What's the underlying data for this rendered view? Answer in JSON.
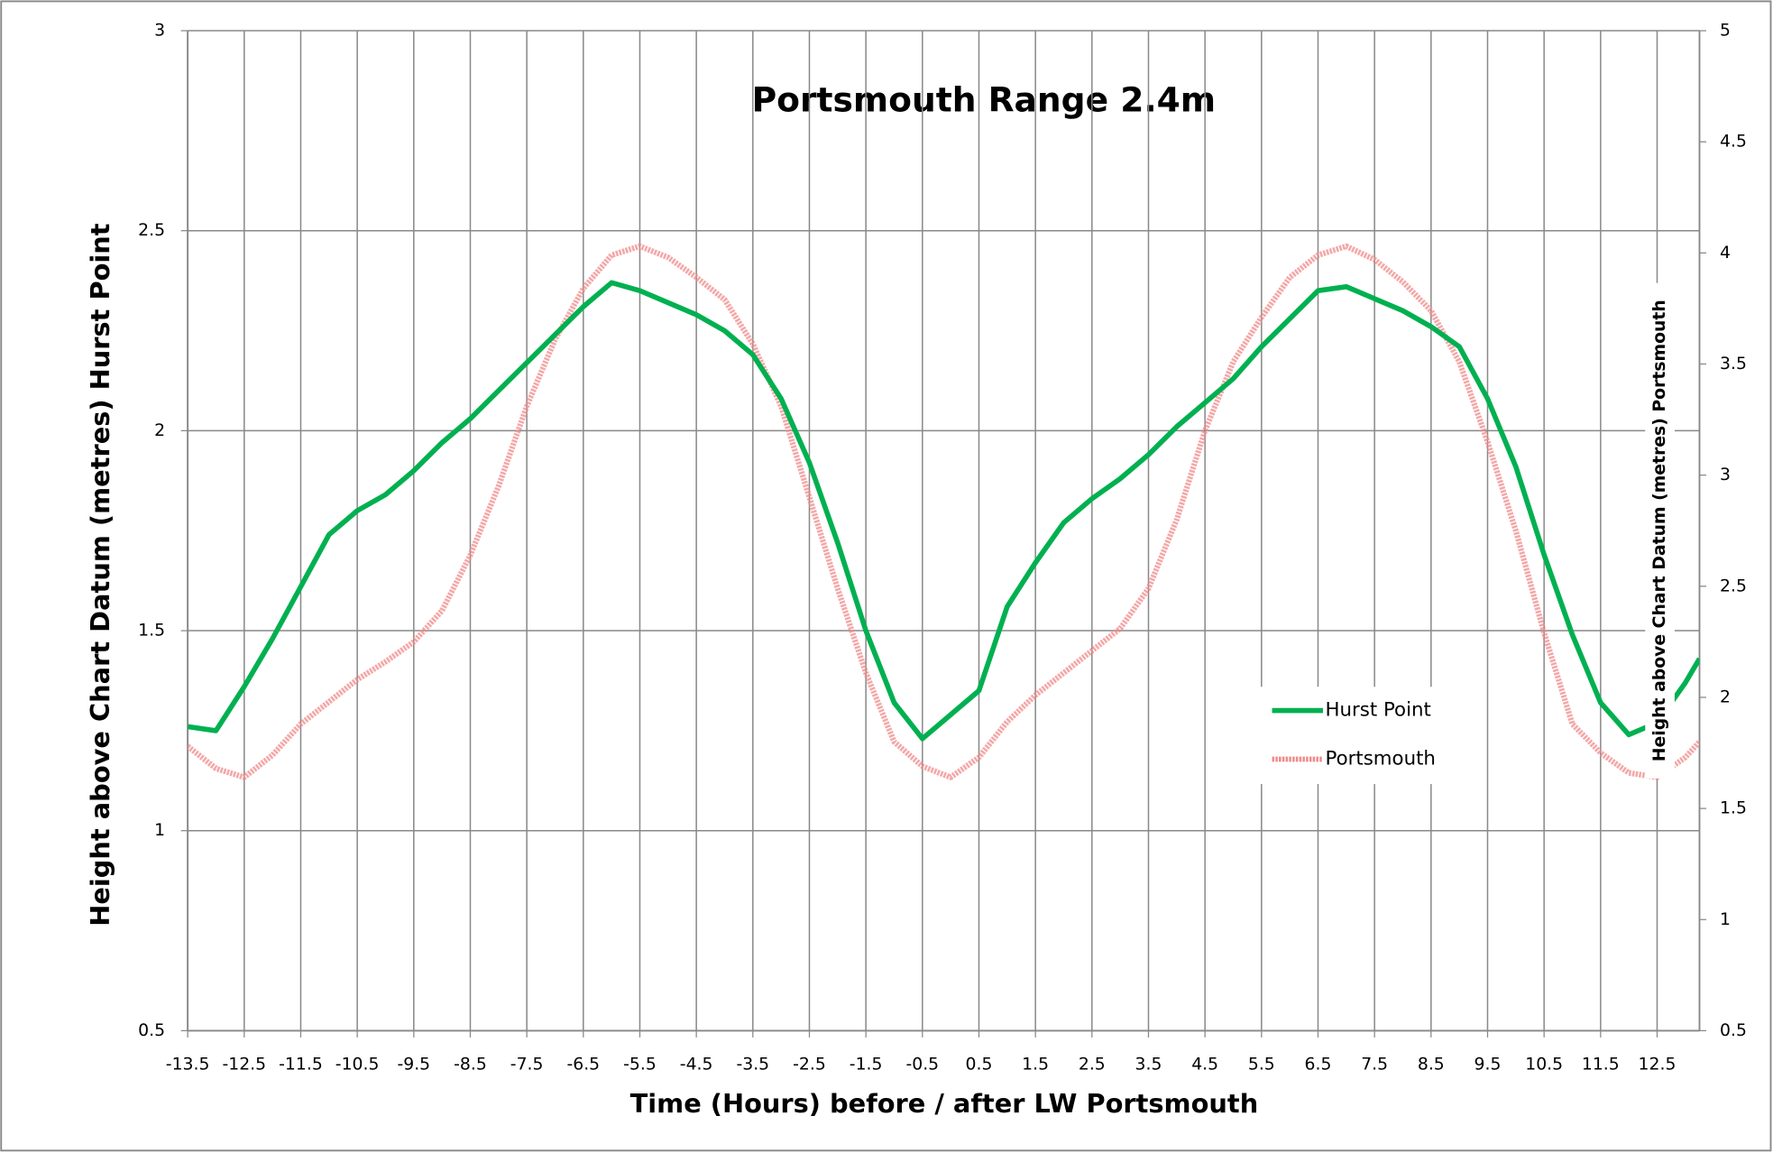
{
  "chart_data": {
    "type": "line",
    "title": "Portsmouth Range 2.4m",
    "xlabel": "Time (Hours) before / after LW Portsmouth",
    "ylabel": "Height above Chart Datum (metres) Hurst Point",
    "y2label": "Height above Chart Datum (metres) Portsmouth",
    "x": [
      -13.5,
      -13,
      -12.5,
      -12,
      -11.5,
      -11,
      -10.5,
      -10,
      -9.5,
      -9,
      -8.5,
      -8,
      -7.5,
      -7,
      -6.5,
      -6,
      -5.5,
      -5,
      -4.5,
      -4,
      -3.5,
      -3,
      -2.5,
      -2,
      -1.5,
      -1,
      -0.5,
      0,
      0.5,
      1,
      1.5,
      2,
      2.5,
      3,
      3.5,
      4,
      4.5,
      5,
      5.5,
      6,
      6.5,
      7,
      7.5,
      8,
      8.5,
      9,
      9.5,
      10,
      10.5,
      11,
      11.5,
      12,
      12.5,
      13,
      13.25
    ],
    "series": [
      {
        "name": "Hurst Point",
        "color": "#00b050",
        "axis": "y",
        "values": [
          1.26,
          1.25,
          1.36,
          1.48,
          1.61,
          1.74,
          1.8,
          1.84,
          1.9,
          1.97,
          2.03,
          2.1,
          2.17,
          2.24,
          2.31,
          2.37,
          2.35,
          2.32,
          2.29,
          2.25,
          2.19,
          2.08,
          1.92,
          1.72,
          1.5,
          1.32,
          1.23,
          1.29,
          1.35,
          1.56,
          1.67,
          1.77,
          1.83,
          1.88,
          1.94,
          2.01,
          2.07,
          2.13,
          2.21,
          2.28,
          2.35,
          2.36,
          2.33,
          2.3,
          2.26,
          2.21,
          2.08,
          1.91,
          1.69,
          1.49,
          1.32,
          1.24,
          1.27,
          1.37,
          1.43
        ]
      },
      {
        "name": "Portsmouth",
        "color": "#f08a8a",
        "axis": "y2",
        "values": [
          1.78,
          1.68,
          1.64,
          1.74,
          1.88,
          1.98,
          2.08,
          2.16,
          2.25,
          2.39,
          2.64,
          2.95,
          3.31,
          3.61,
          3.84,
          3.99,
          4.03,
          3.98,
          3.89,
          3.79,
          3.59,
          3.31,
          2.9,
          2.49,
          2.11,
          1.8,
          1.69,
          1.64,
          1.73,
          1.89,
          2.01,
          2.11,
          2.21,
          2.31,
          2.49,
          2.8,
          3.2,
          3.51,
          3.71,
          3.89,
          3.99,
          4.03,
          3.97,
          3.87,
          3.74,
          3.51,
          3.15,
          2.75,
          2.29,
          1.88,
          1.75,
          1.66,
          1.64,
          1.73,
          1.8
        ]
      }
    ],
    "xlim": [
      -13.5,
      13.25
    ],
    "xticks": [
      -13.5,
      -12.5,
      -11.5,
      -10.5,
      -9.5,
      -8.5,
      -7.5,
      -6.5,
      -5.5,
      -4.5,
      -3.5,
      -2.5,
      -1.5,
      -0.5,
      0.5,
      1.5,
      2.5,
      3.5,
      4.5,
      5.5,
      6.5,
      7.5,
      8.5,
      9.5,
      10.5,
      11.5,
      12.5
    ],
    "ylim": [
      0.5,
      3
    ],
    "yticks": [
      0.5,
      1,
      1.5,
      2,
      2.5,
      3
    ],
    "y2lim": [
      0.5,
      5
    ],
    "y2ticks": [
      0.5,
      1,
      1.5,
      2,
      2.5,
      3,
      3.5,
      4,
      4.5,
      5
    ],
    "grid": true,
    "legend": "center-right"
  }
}
